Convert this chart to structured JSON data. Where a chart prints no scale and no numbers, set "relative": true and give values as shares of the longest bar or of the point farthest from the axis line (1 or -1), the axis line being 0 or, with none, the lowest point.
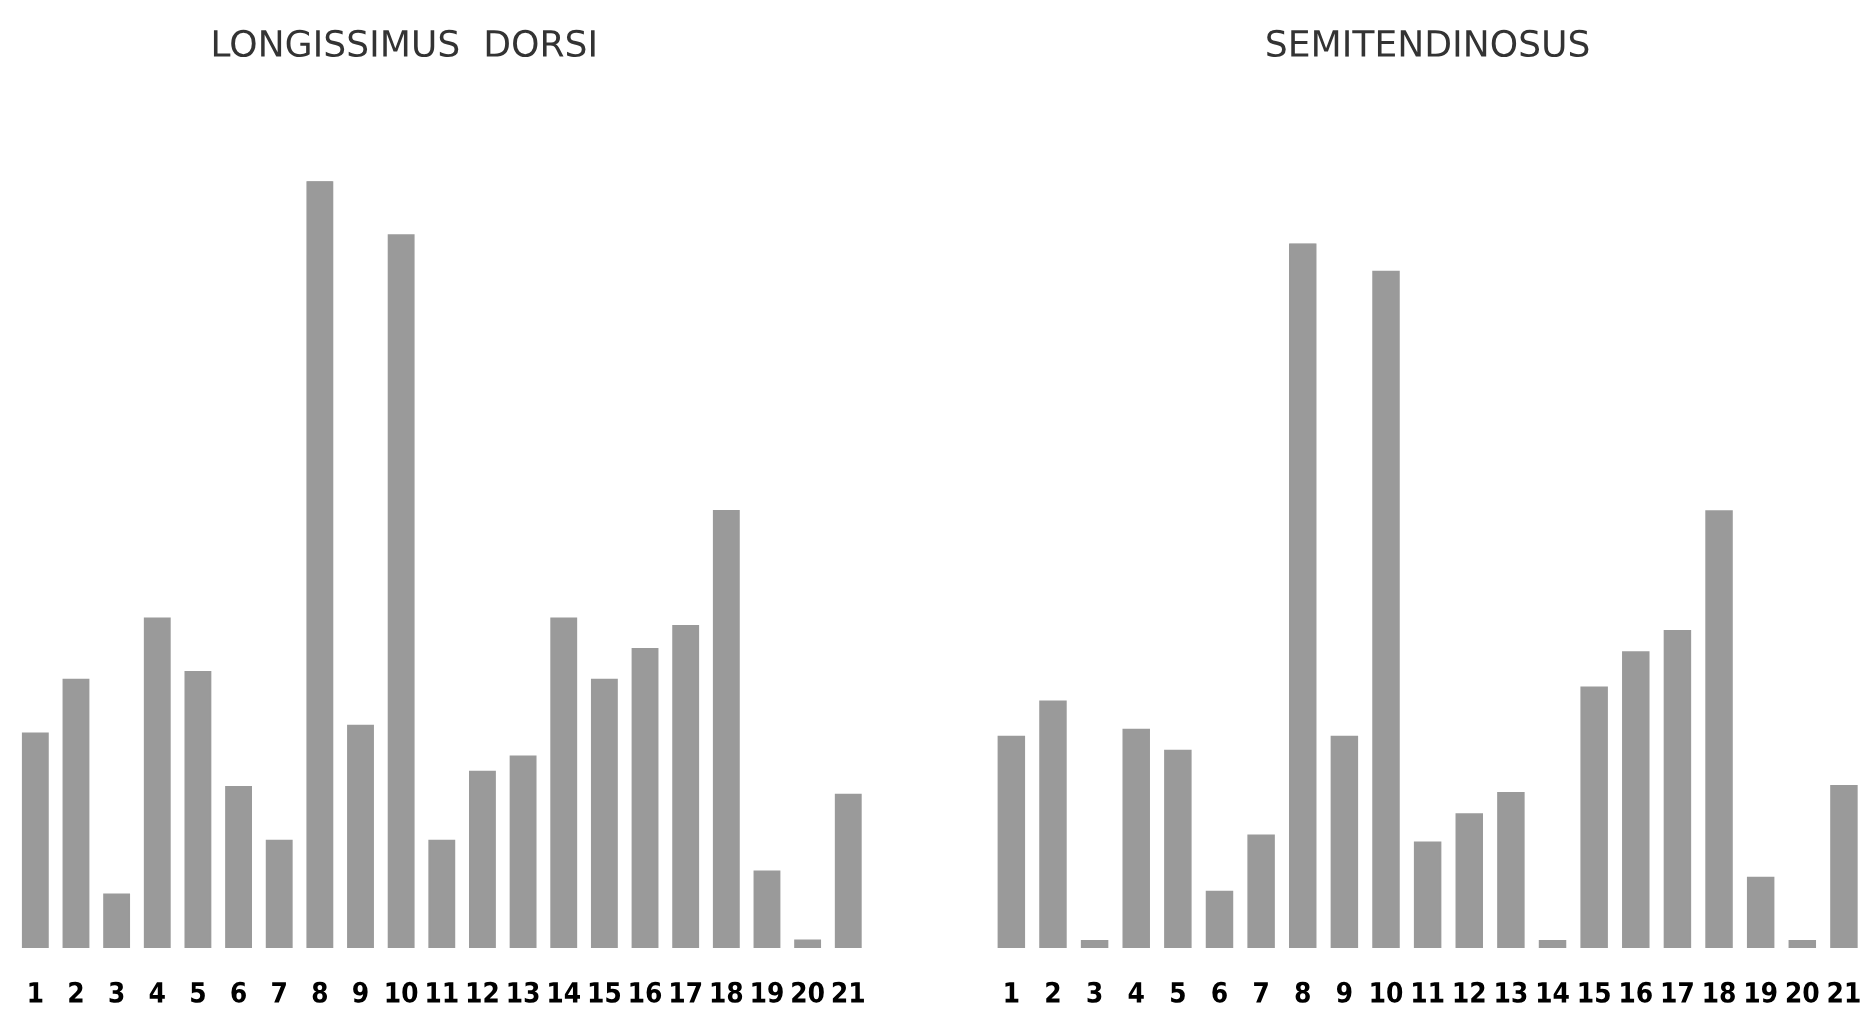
{
  "chart_data": [
    {
      "type": "bar",
      "title": "LONGISSIMUS DORSI",
      "relative": true,
      "color": "#9a9a9a",
      "categories": [
        "1",
        "2",
        "3",
        "4",
        "5",
        "6",
        "7",
        "8",
        "9",
        "10",
        "11",
        "12",
        "13",
        "14",
        "15",
        "16",
        "17",
        "18",
        "19",
        "20",
        "21"
      ],
      "values": [
        0.28,
        0.35,
        0.07,
        0.43,
        0.36,
        0.21,
        0.14,
        1,
        0.29,
        0.93,
        0.14,
        0.23,
        0.25,
        0.43,
        0.35,
        0.39,
        0.42,
        0.57,
        0.1,
        0.01,
        0.2
      ]
    },
    {
      "type": "bar",
      "title": "SEMITENDINOSUS",
      "relative": true,
      "color": "#9a9a9a",
      "categories": [
        "1",
        "2",
        "3",
        "4",
        "5",
        "6",
        "7",
        "8",
        "9",
        "10",
        "11",
        "12",
        "13",
        "14",
        "15",
        "16",
        "17",
        "18",
        "19",
        "20",
        "21"
      ],
      "values": [
        0.3,
        0.35,
        0.01,
        0.31,
        0.28,
        0.08,
        0.16,
        1,
        0.3,
        0.96,
        0.15,
        0.19,
        0.22,
        0.01,
        0.37,
        0.42,
        0.45,
        0.62,
        0.1,
        0.01,
        0.23
      ]
    }
  ]
}
